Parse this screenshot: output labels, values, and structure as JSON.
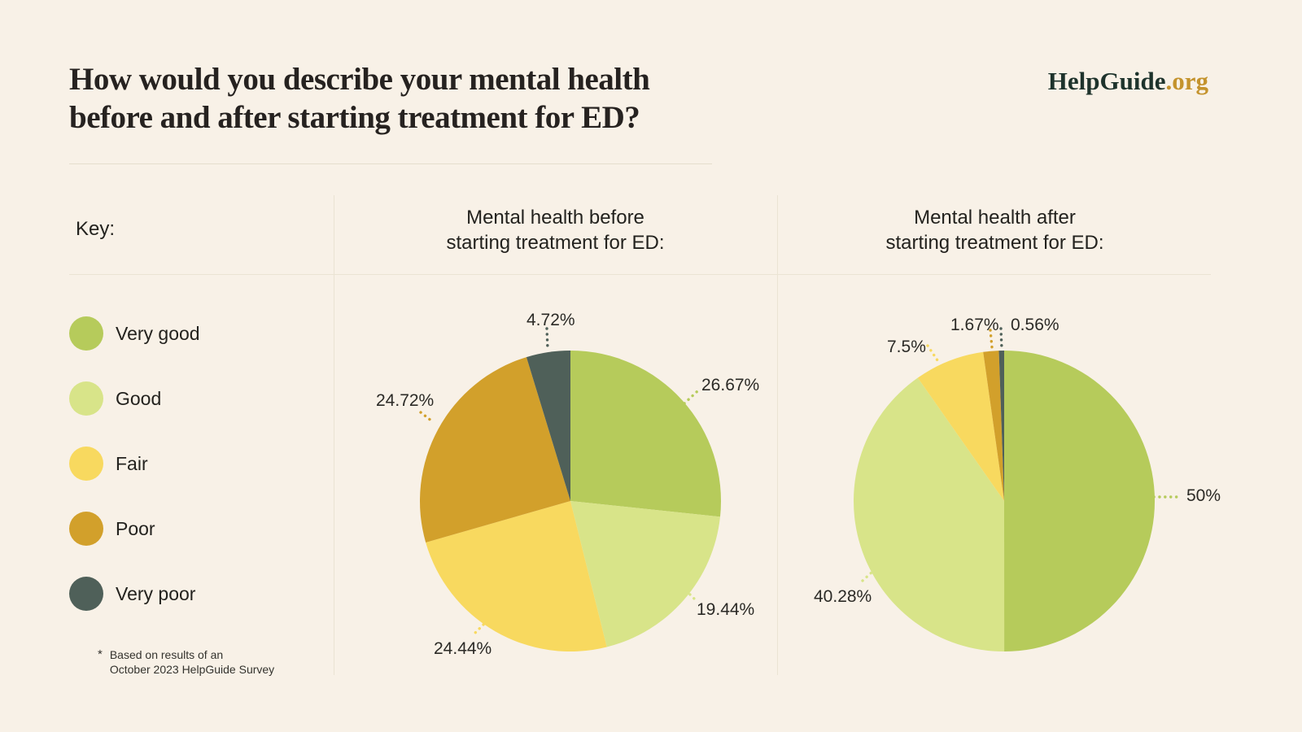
{
  "page": {
    "background": "#f8f1e7"
  },
  "header": {
    "title_line1": "How would you describe your mental health",
    "title_line2": "before and after starting treatment for ED?",
    "logo_name": "HelpGuide",
    "logo_tld": ".org"
  },
  "key": {
    "heading": "Key:",
    "items": [
      {
        "label": "Very good",
        "color": "#b6cb5b"
      },
      {
        "label": "Good",
        "color": "#d8e489"
      },
      {
        "label": "Fair",
        "color": "#f8d95f"
      },
      {
        "label": "Poor",
        "color": "#d2a02b"
      },
      {
        "label": "Very poor",
        "color": "#4f6059"
      }
    ],
    "footnote_marker": "*",
    "footnote_line1": "Based on results of an",
    "footnote_line2": "October 2023 HelpGuide Survey"
  },
  "chart_data": [
    {
      "type": "pie",
      "title_line1": "Mental health before",
      "title_line2": "starting treatment for ED:",
      "categories": [
        "Very good",
        "Good",
        "Fair",
        "Poor",
        "Very poor"
      ],
      "values": [
        26.67,
        19.44,
        24.44,
        24.72,
        4.72
      ],
      "labels": [
        "26.67%",
        "19.44%",
        "24.44%",
        "24.72%",
        "4.72%"
      ],
      "colors": [
        "#b6cb5b",
        "#d8e489",
        "#f8d95f",
        "#d2a02b",
        "#4f6059"
      ],
      "start_angle_deg": 0,
      "direction": "clockwise",
      "legend_position": "shared-left-key"
    },
    {
      "type": "pie",
      "title_line1": "Mental health after",
      "title_line2": "starting treatment for ED:",
      "categories": [
        "Very good",
        "Good",
        "Fair",
        "Poor",
        "Very poor"
      ],
      "values": [
        50,
        40.28,
        7.5,
        1.67,
        0.56
      ],
      "labels": [
        "50%",
        "40.28%",
        "7.5%",
        "1.67%",
        "0.56%"
      ],
      "colors": [
        "#b6cb5b",
        "#d8e489",
        "#f8d95f",
        "#d2a02b",
        "#4f6059"
      ],
      "start_angle_deg": 0,
      "direction": "clockwise",
      "legend_position": "shared-left-key"
    }
  ]
}
